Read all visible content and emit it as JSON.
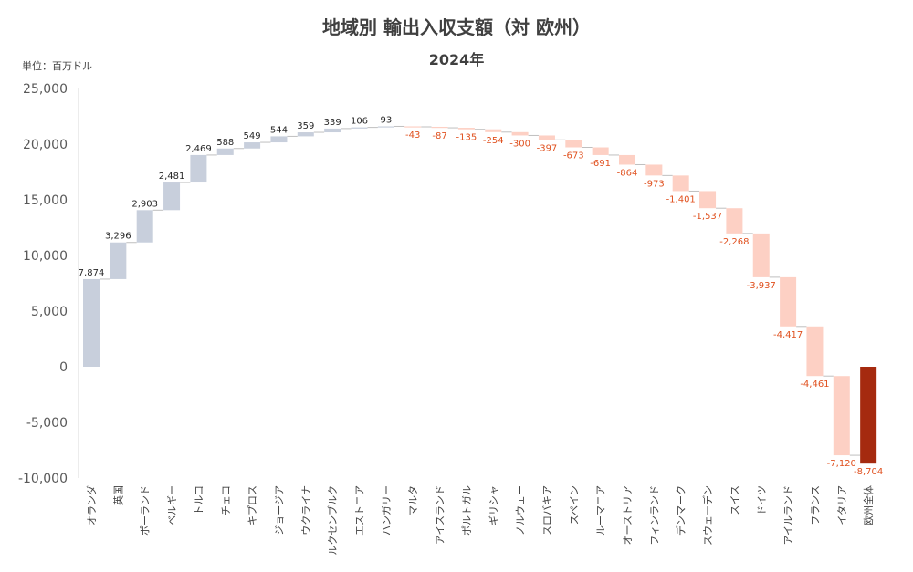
{
  "chart_data": {
    "type": "bar",
    "subtype": "waterfall",
    "title": "地域別 輸出入収支額（対 欧州）",
    "subtitle": "2024年",
    "unit_label": "単位：百万ドル",
    "ylim": [
      -10000,
      25000
    ],
    "yticks": [
      25000,
      20000,
      15000,
      10000,
      5000,
      0,
      -5000,
      -10000
    ],
    "ytick_labels": [
      "25,000",
      "20,000",
      "15,000",
      "10,000",
      "5,000",
      "0",
      "-5,000",
      "-10,000"
    ],
    "grid": false,
    "colors": {
      "positive": "#c8cfdc",
      "negative": "#fdd0c4",
      "total": "#a52a0f",
      "positive_label": "#262626",
      "negative_label": "#e0501e",
      "connector": "#bfbfbf"
    },
    "categories": [
      "オランダ",
      "英国",
      "ポーランド",
      "ベルギー",
      "トルコ",
      "チェコ",
      "キプロス",
      "ジョージア",
      "ウクライナ",
      "ルクセンブルク",
      "エストニア",
      "ハンガリー",
      "マルタ",
      "アイスランド",
      "ポルトガル",
      "ギリシャ",
      "ノルウェー",
      "スロバキア",
      "スペイン",
      "ルーマニア",
      "オーストリア",
      "フィンランド",
      "デンマーク",
      "スウェーデン",
      "スイス",
      "ドイツ",
      "アイルランド",
      "フランス",
      "イタリア",
      "欧州全体"
    ],
    "values": [
      7874,
      3296,
      2903,
      2481,
      2469,
      588,
      549,
      544,
      359,
      339,
      106,
      93,
      -43,
      -87,
      -135,
      -254,
      -300,
      -397,
      -673,
      -691,
      -864,
      -973,
      -1401,
      -1537,
      -2268,
      -3937,
      -4417,
      -4461,
      -7120,
      -8704
    ],
    "value_labels": [
      "7,874",
      "3,296",
      "2,903",
      "2,481",
      "2,469",
      "588",
      "549",
      "544",
      "359",
      "339",
      "106",
      "93",
      "-43",
      "-87",
      "-135",
      "-254",
      "-300",
      "-397",
      "-673",
      "-691",
      "-864",
      "-973",
      "-1,401",
      "-1,537",
      "-2,268",
      "-3,937",
      "-4,417",
      "-4,461",
      "-7,120",
      "-8,704"
    ],
    "total_index": 29
  }
}
